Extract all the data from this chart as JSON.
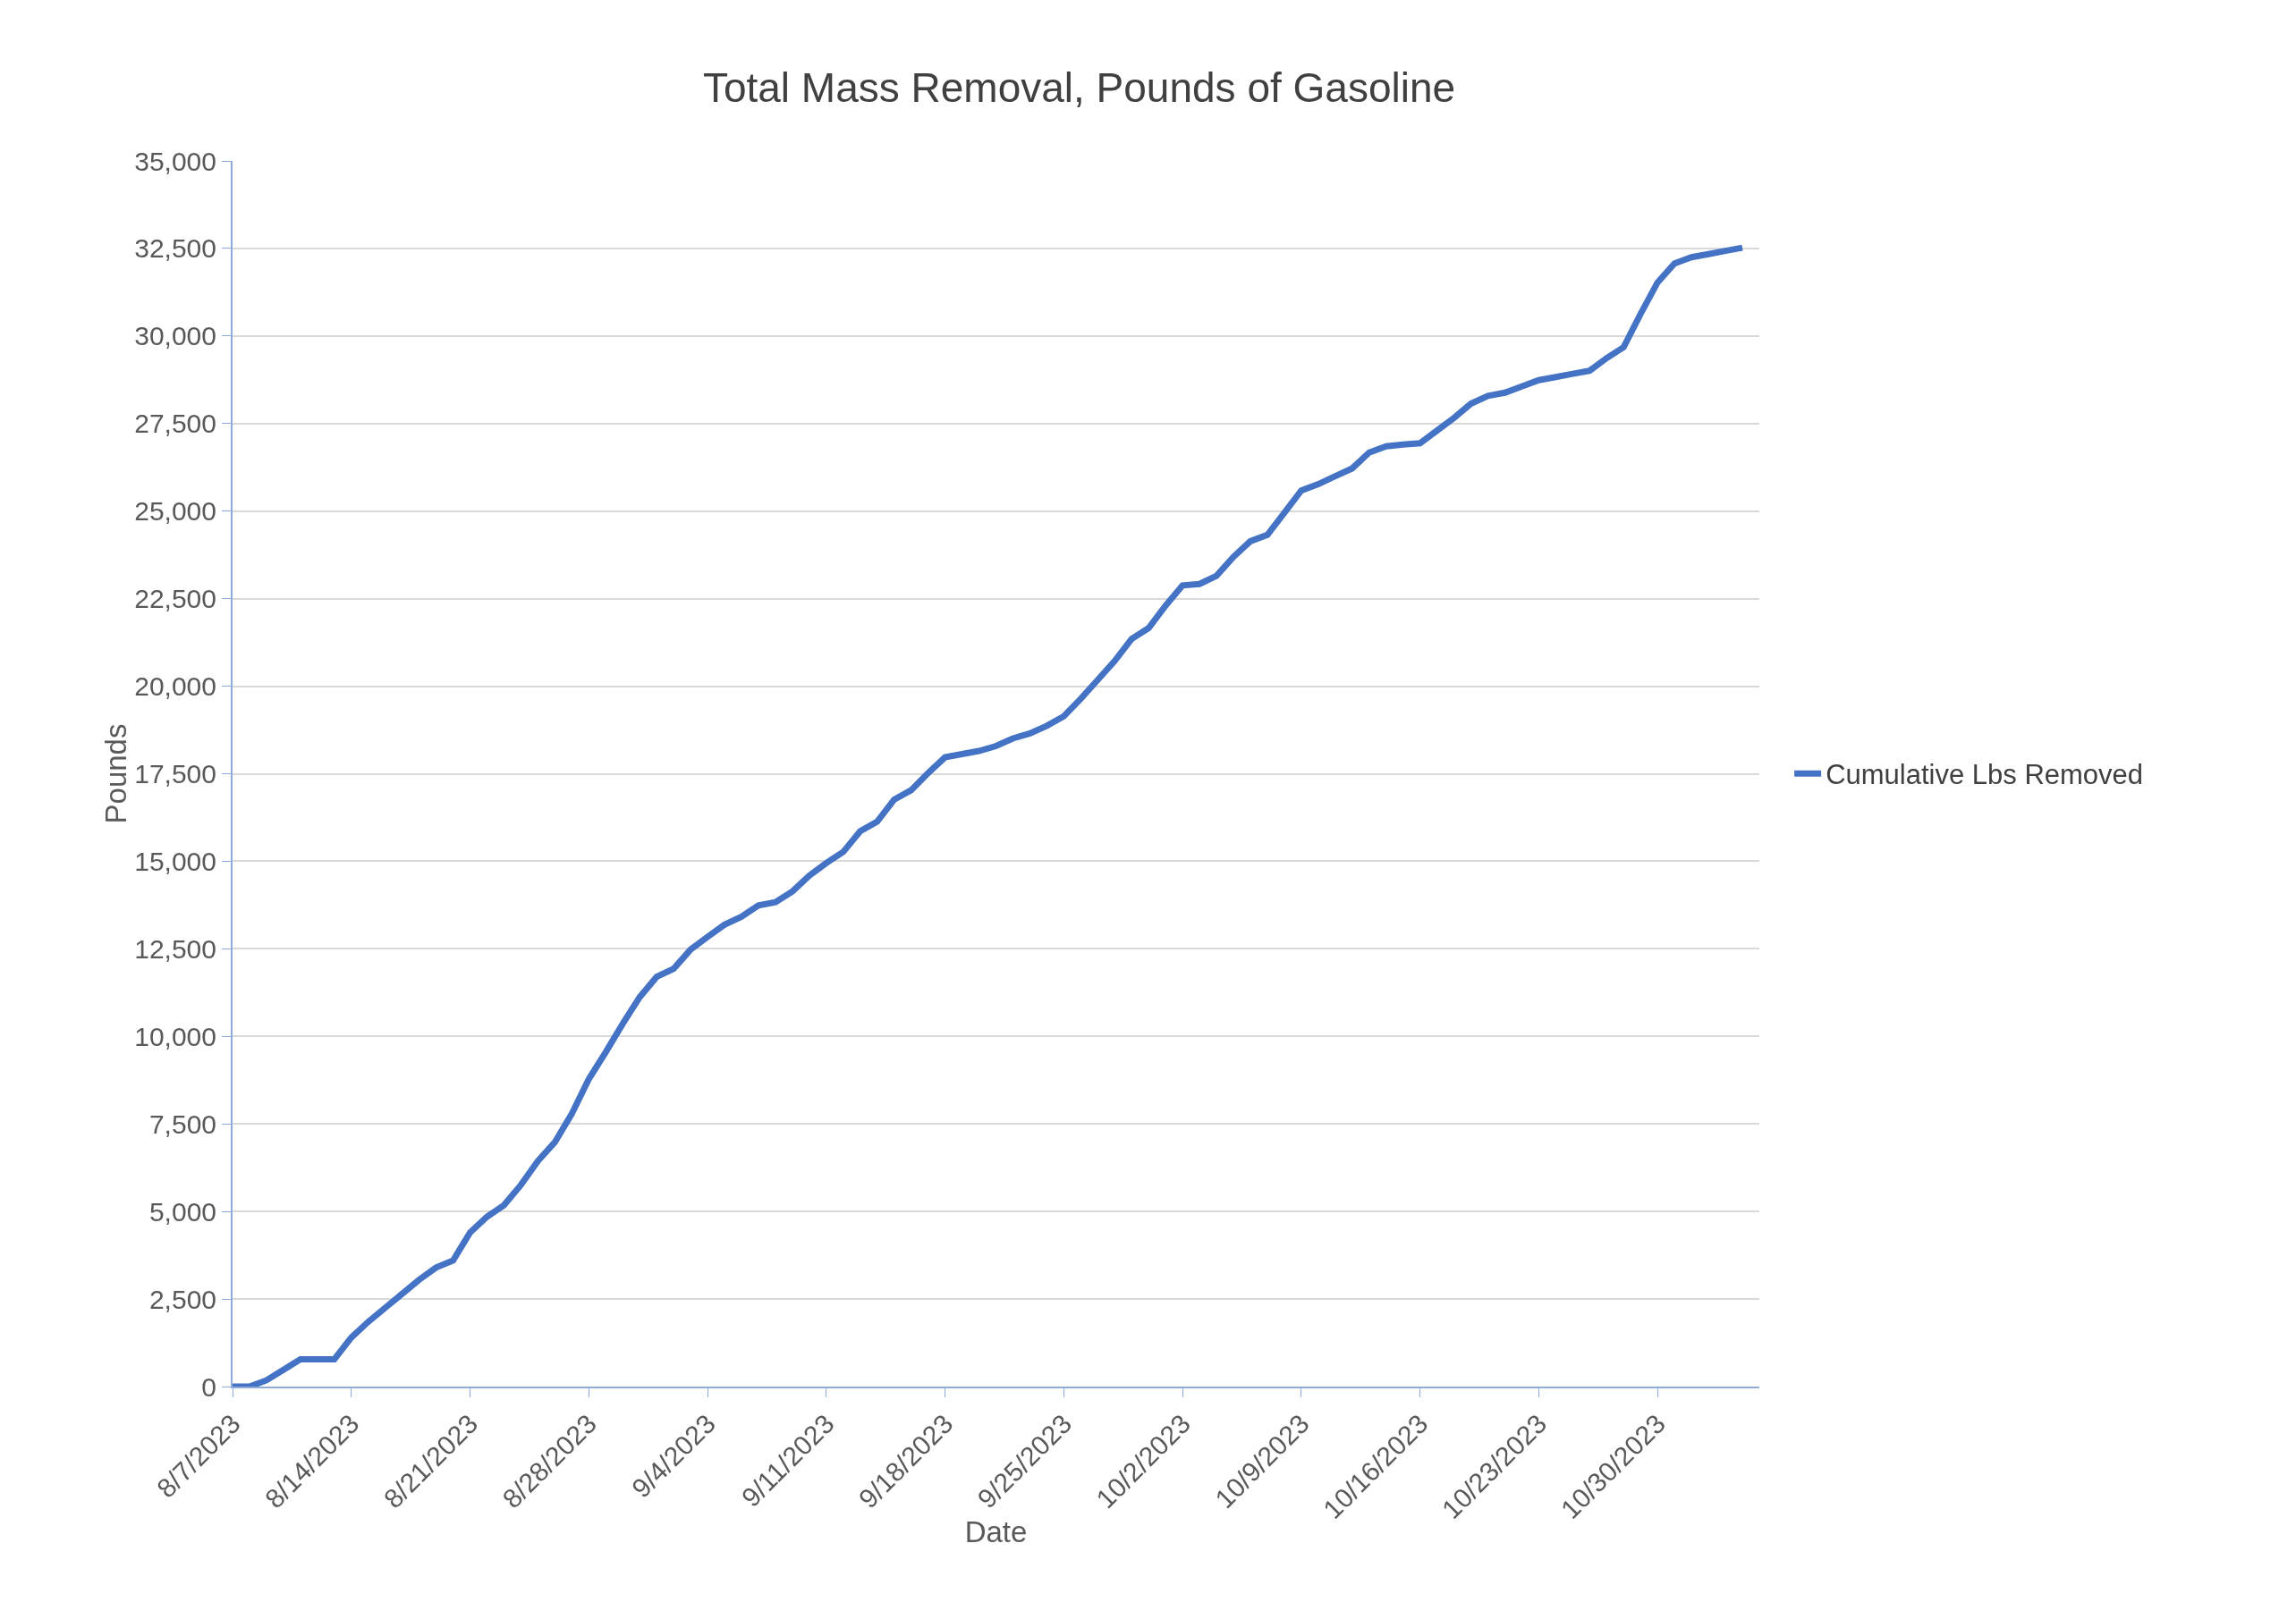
{
  "chart_data": {
    "type": "line",
    "title": "Total Mass Removal, Pounds of Gasoline",
    "xlabel": "Date",
    "ylabel": "Pounds",
    "x": [
      "2023-08-07",
      "2023-08-08",
      "2023-08-09",
      "2023-08-10",
      "2023-08-11",
      "2023-08-12",
      "2023-08-13",
      "2023-08-14",
      "2023-08-15",
      "2023-08-16",
      "2023-08-17",
      "2023-08-18",
      "2023-08-19",
      "2023-08-20",
      "2023-08-21",
      "2023-08-22",
      "2023-08-23",
      "2023-08-24",
      "2023-08-25",
      "2023-08-26",
      "2023-08-27",
      "2023-08-28",
      "2023-08-29",
      "2023-08-30",
      "2023-08-31",
      "2023-09-01",
      "2023-09-02",
      "2023-09-03",
      "2023-09-04",
      "2023-09-05",
      "2023-09-06",
      "2023-09-07",
      "2023-09-08",
      "2023-09-09",
      "2023-09-10",
      "2023-09-11",
      "2023-09-12",
      "2023-09-13",
      "2023-09-14",
      "2023-09-15",
      "2023-09-16",
      "2023-09-17",
      "2023-09-18",
      "2023-09-19",
      "2023-09-20",
      "2023-09-21",
      "2023-09-22",
      "2023-09-23",
      "2023-09-24",
      "2023-09-25",
      "2023-09-26",
      "2023-09-27",
      "2023-09-28",
      "2023-09-29",
      "2023-09-30",
      "2023-10-01",
      "2023-10-02",
      "2023-10-03",
      "2023-10-04",
      "2023-10-05",
      "2023-10-06",
      "2023-10-07",
      "2023-10-08",
      "2023-10-09",
      "2023-10-10",
      "2023-10-11",
      "2023-10-12",
      "2023-10-13",
      "2023-10-14",
      "2023-10-15",
      "2023-10-16",
      "2023-10-17",
      "2023-10-18",
      "2023-10-19",
      "2023-10-20",
      "2023-10-21",
      "2023-10-22",
      "2023-10-23",
      "2023-10-24",
      "2023-10-25",
      "2023-10-26",
      "2023-10-27",
      "2023-10-28",
      "2023-10-29",
      "2023-10-30",
      "2023-10-31",
      "2023-11-01",
      "2023-11-02",
      "2023-11-03",
      "2023-11-04"
    ],
    "series": [
      {
        "name": "Cumulative Lbs Removed",
        "color": "#4472c4",
        "values": [
          0,
          0,
          180,
          480,
          780,
          780,
          780,
          1400,
          1850,
          2250,
          2650,
          3050,
          3400,
          3600,
          4400,
          4850,
          5180,
          5760,
          6440,
          6980,
          7790,
          8780,
          9550,
          10360,
          11120,
          11700,
          11930,
          12480,
          12840,
          13190,
          13420,
          13740,
          13830,
          14140,
          14590,
          14950,
          15270,
          15860,
          16130,
          16760,
          17030,
          17520,
          17970,
          18060,
          18150,
          18290,
          18510,
          18650,
          18870,
          19140,
          19640,
          20180,
          20720,
          21350,
          21660,
          22300,
          22880,
          22920,
          23150,
          23690,
          24140,
          24320,
          24950,
          25590,
          25770,
          26000,
          26220,
          26670,
          26850,
          26900,
          26940,
          27300,
          27660,
          28070,
          28290,
          28380,
          28560,
          28740,
          28830,
          28920,
          29010,
          29370,
          29680,
          30630,
          31530,
          32070,
          32250,
          32340,
          32430,
          32520
        ]
      }
    ],
    "xlim": [
      "2023-08-07",
      "2023-11-05"
    ],
    "xticks": [
      {
        "value": "2023-08-07",
        "label": "8/7/2023"
      },
      {
        "value": "2023-08-14",
        "label": "8/14/2023"
      },
      {
        "value": "2023-08-21",
        "label": "8/21/2023"
      },
      {
        "value": "2023-08-28",
        "label": "8/28/2023"
      },
      {
        "value": "2023-09-04",
        "label": "9/4/2023"
      },
      {
        "value": "2023-09-11",
        "label": "9/11/2023"
      },
      {
        "value": "2023-09-18",
        "label": "9/18/2023"
      },
      {
        "value": "2023-09-25",
        "label": "9/25/2023"
      },
      {
        "value": "2023-10-02",
        "label": "10/2/2023"
      },
      {
        "value": "2023-10-09",
        "label": "10/9/2023"
      },
      {
        "value": "2023-10-16",
        "label": "10/16/2023"
      },
      {
        "value": "2023-10-23",
        "label": "10/23/2023"
      },
      {
        "value": "2023-10-30",
        "label": "10/30/2023"
      }
    ],
    "ylim": [
      0,
      35000
    ],
    "yticks": [
      {
        "value": 0,
        "label": "0"
      },
      {
        "value": 2500,
        "label": "2,500"
      },
      {
        "value": 5000,
        "label": "5,000"
      },
      {
        "value": 7500,
        "label": "7,500"
      },
      {
        "value": 10000,
        "label": "10,000"
      },
      {
        "value": 12500,
        "label": "12,500"
      },
      {
        "value": 15000,
        "label": "15,000"
      },
      {
        "value": 17500,
        "label": "17,500"
      },
      {
        "value": 20000,
        "label": "20,000"
      },
      {
        "value": 22500,
        "label": "22,500"
      },
      {
        "value": 25000,
        "label": "25,000"
      },
      {
        "value": 27500,
        "label": "27,500"
      },
      {
        "value": 30000,
        "label": "30,000"
      },
      {
        "value": 32500,
        "label": "32,500"
      },
      {
        "value": 35000,
        "label": "35,000"
      }
    ],
    "grid": "y",
    "legend": "right",
    "marker": "none",
    "line_style": "solid"
  }
}
